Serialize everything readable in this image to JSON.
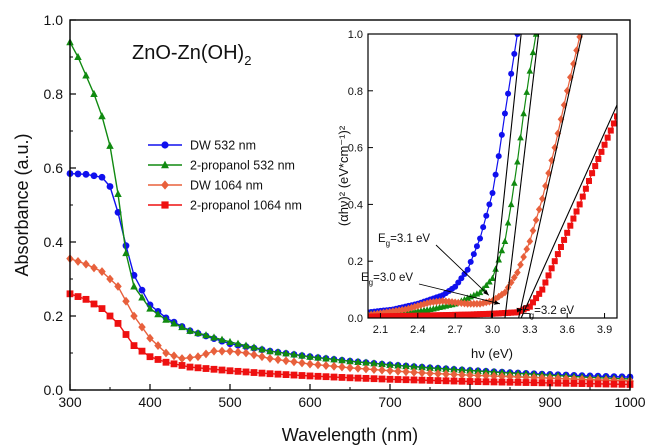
{
  "chart_data": [
    {
      "type": "line",
      "title": "ZnO-Zn(OH)",
      "title_subscript": "2",
      "xlabel": "Wavelength (nm)",
      "ylabel": "Absorbance (a.u.)",
      "xlim": [
        300,
        1000
      ],
      "ylim": [
        0,
        1.0
      ],
      "xticks": [
        "300",
        "400",
        "500",
        "600",
        "700",
        "800",
        "900",
        "1000"
      ],
      "yticks": [
        "0.0",
        "0.2",
        "0.4",
        "0.6",
        "0.8",
        "1.0"
      ],
      "grid": false,
      "legend_position": "center-left",
      "series": [
        {
          "name": "DW 532 nm",
          "color": "#1010ee",
          "marker": "circle",
          "points": [
            [
              300,
              0.585
            ],
            [
              320,
              0.583
            ],
            [
              340,
              0.575
            ],
            [
              350,
              0.55
            ],
            [
              360,
              0.48
            ],
            [
              370,
              0.39
            ],
            [
              380,
              0.31
            ],
            [
              400,
              0.23
            ],
            [
              420,
              0.195
            ],
            [
              450,
              0.16
            ],
            [
              500,
              0.125
            ],
            [
              550,
              0.105
            ],
            [
              600,
              0.09
            ],
            [
              650,
              0.078
            ],
            [
              700,
              0.068
            ],
            [
              750,
              0.06
            ],
            [
              800,
              0.053
            ],
            [
              850,
              0.047
            ],
            [
              900,
              0.042
            ],
            [
              950,
              0.038
            ],
            [
              1000,
              0.035
            ]
          ]
        },
        {
          "name": "2-propanol 532 nm",
          "color": "#108a10",
          "marker": "triangle",
          "points": [
            [
              300,
              0.94
            ],
            [
              310,
              0.9
            ],
            [
              320,
              0.85
            ],
            [
              330,
              0.8
            ],
            [
              340,
              0.74
            ],
            [
              350,
              0.66
            ],
            [
              360,
              0.53
            ],
            [
              370,
              0.37
            ],
            [
              380,
              0.28
            ],
            [
              400,
              0.22
            ],
            [
              420,
              0.19
            ],
            [
              450,
              0.16
            ],
            [
              500,
              0.13
            ],
            [
              550,
              0.105
            ],
            [
              600,
              0.09
            ],
            [
              650,
              0.078
            ],
            [
              700,
              0.068
            ],
            [
              750,
              0.06
            ],
            [
              800,
              0.053
            ],
            [
              850,
              0.046
            ],
            [
              900,
              0.04
            ],
            [
              950,
              0.034
            ],
            [
              1000,
              0.03
            ]
          ]
        },
        {
          "name": "DW 1064 nm",
          "color": "#e8603c",
          "marker": "diamond",
          "points": [
            [
              300,
              0.355
            ],
            [
              320,
              0.34
            ],
            [
              340,
              0.32
            ],
            [
              360,
              0.28
            ],
            [
              380,
              0.2
            ],
            [
              400,
              0.14
            ],
            [
              420,
              0.1
            ],
            [
              440,
              0.085
            ],
            [
              460,
              0.09
            ],
            [
              480,
              0.105
            ],
            [
              500,
              0.105
            ],
            [
              520,
              0.1
            ],
            [
              550,
              0.085
            ],
            [
              600,
              0.07
            ],
            [
              650,
              0.06
            ],
            [
              700,
              0.052
            ],
            [
              750,
              0.045
            ],
            [
              800,
              0.04
            ],
            [
              850,
              0.036
            ],
            [
              900,
              0.032
            ],
            [
              950,
              0.028
            ],
            [
              1000,
              0.025
            ]
          ]
        },
        {
          "name": "2-propanol 1064 nm",
          "color": "#ee1010",
          "marker": "square",
          "points": [
            [
              300,
              0.26
            ],
            [
              320,
              0.245
            ],
            [
              340,
              0.22
            ],
            [
              360,
              0.18
            ],
            [
              380,
              0.12
            ],
            [
              400,
              0.09
            ],
            [
              420,
              0.075
            ],
            [
              450,
              0.062
            ],
            [
              500,
              0.052
            ],
            [
              550,
              0.044
            ],
            [
              600,
              0.038
            ],
            [
              650,
              0.033
            ],
            [
              700,
              0.029
            ],
            [
              750,
              0.026
            ],
            [
              800,
              0.023
            ],
            [
              850,
              0.021
            ],
            [
              900,
              0.019
            ],
            [
              950,
              0.017
            ],
            [
              1000,
              0.015
            ]
          ]
        }
      ]
    },
    {
      "type": "line",
      "title": "",
      "xlabel": "hν (eV)",
      "ylabel": "(αhν)² (eV*cm⁻¹)²",
      "xlim": [
        2.0,
        4.0
      ],
      "ylim": [
        0,
        1.0
      ],
      "xticks": [
        "2.1",
        "2.4",
        "2.7",
        "3.0",
        "3.3",
        "3.6",
        "3.9"
      ],
      "yticks": [
        "0.0",
        "0.2",
        "0.4",
        "0.6",
        "0.8",
        "1.0"
      ],
      "grid": false,
      "series": [
        {
          "color": "#1010ee",
          "marker": "circle",
          "points": [
            [
              2.0,
              0.02
            ],
            [
              2.2,
              0.03
            ],
            [
              2.4,
              0.05
            ],
            [
              2.6,
              0.08
            ],
            [
              2.7,
              0.11
            ],
            [
              2.8,
              0.17
            ],
            [
              2.9,
              0.28
            ],
            [
              3.0,
              0.44
            ],
            [
              3.05,
              0.57
            ],
            [
              3.1,
              0.72
            ],
            [
              3.15,
              0.86
            ],
            [
              3.2,
              1.0
            ]
          ]
        },
        {
          "color": "#108a10",
          "marker": "triangle",
          "points": [
            [
              2.0,
              0.015
            ],
            [
              2.3,
              0.02
            ],
            [
              2.5,
              0.03
            ],
            [
              2.7,
              0.05
            ],
            [
              2.9,
              0.09
            ],
            [
              3.0,
              0.14
            ],
            [
              3.1,
              0.27
            ],
            [
              3.15,
              0.4
            ],
            [
              3.2,
              0.55
            ],
            [
              3.25,
              0.72
            ],
            [
              3.3,
              0.87
            ],
            [
              3.35,
              1.0
            ]
          ]
        },
        {
          "color": "#e8603c",
          "marker": "diamond",
          "points": [
            [
              2.0,
              0.01
            ],
            [
              2.3,
              0.03
            ],
            [
              2.5,
              0.055
            ],
            [
              2.6,
              0.06
            ],
            [
              2.7,
              0.055
            ],
            [
              2.8,
              0.05
            ],
            [
              2.9,
              0.05
            ],
            [
              3.0,
              0.06
            ],
            [
              3.1,
              0.09
            ],
            [
              3.2,
              0.16
            ],
            [
              3.3,
              0.27
            ],
            [
              3.4,
              0.42
            ],
            [
              3.5,
              0.6
            ],
            [
              3.6,
              0.8
            ],
            [
              3.7,
              0.99
            ]
          ]
        },
        {
          "color": "#ee1010",
          "marker": "square",
          "points": [
            [
              2.0,
              0.005
            ],
            [
              2.4,
              0.008
            ],
            [
              2.8,
              0.012
            ],
            [
              3.0,
              0.015
            ],
            [
              3.2,
              0.02
            ],
            [
              3.3,
              0.04
            ],
            [
              3.4,
              0.1
            ],
            [
              3.5,
              0.2
            ],
            [
              3.6,
              0.3
            ],
            [
              3.7,
              0.4
            ],
            [
              3.8,
              0.51
            ],
            [
              3.9,
              0.61
            ],
            [
              4.0,
              0.71
            ]
          ]
        }
      ],
      "fit_lines": [
        {
          "color": "#000000",
          "from": [
            2.99,
            0.0
          ],
          "to": [
            3.23,
            1.0
          ]
        },
        {
          "color": "#000000",
          "from": [
            3.1,
            0.0
          ],
          "to": [
            3.37,
            1.0
          ]
        },
        {
          "color": "#000000",
          "from": [
            3.21,
            0.0
          ],
          "to": [
            3.72,
            1.0
          ]
        },
        {
          "color": "#000000",
          "from": [
            3.23,
            0.0
          ],
          "to": [
            4.0,
            0.75
          ]
        }
      ],
      "annotations": [
        {
          "label": "E",
          "sub": "g",
          "value": "=3.1 eV",
          "arrow_to": [
            2.97,
            0.08
          ]
        },
        {
          "label": "E",
          "sub": "g",
          "value": "=3.0 eV",
          "arrow_to": [
            3.06,
            0.05
          ]
        },
        {
          "label": "E",
          "sub": "g",
          "value": "=3.2 eV",
          "arrow_to": [
            3.24,
            0.03
          ]
        }
      ]
    }
  ]
}
